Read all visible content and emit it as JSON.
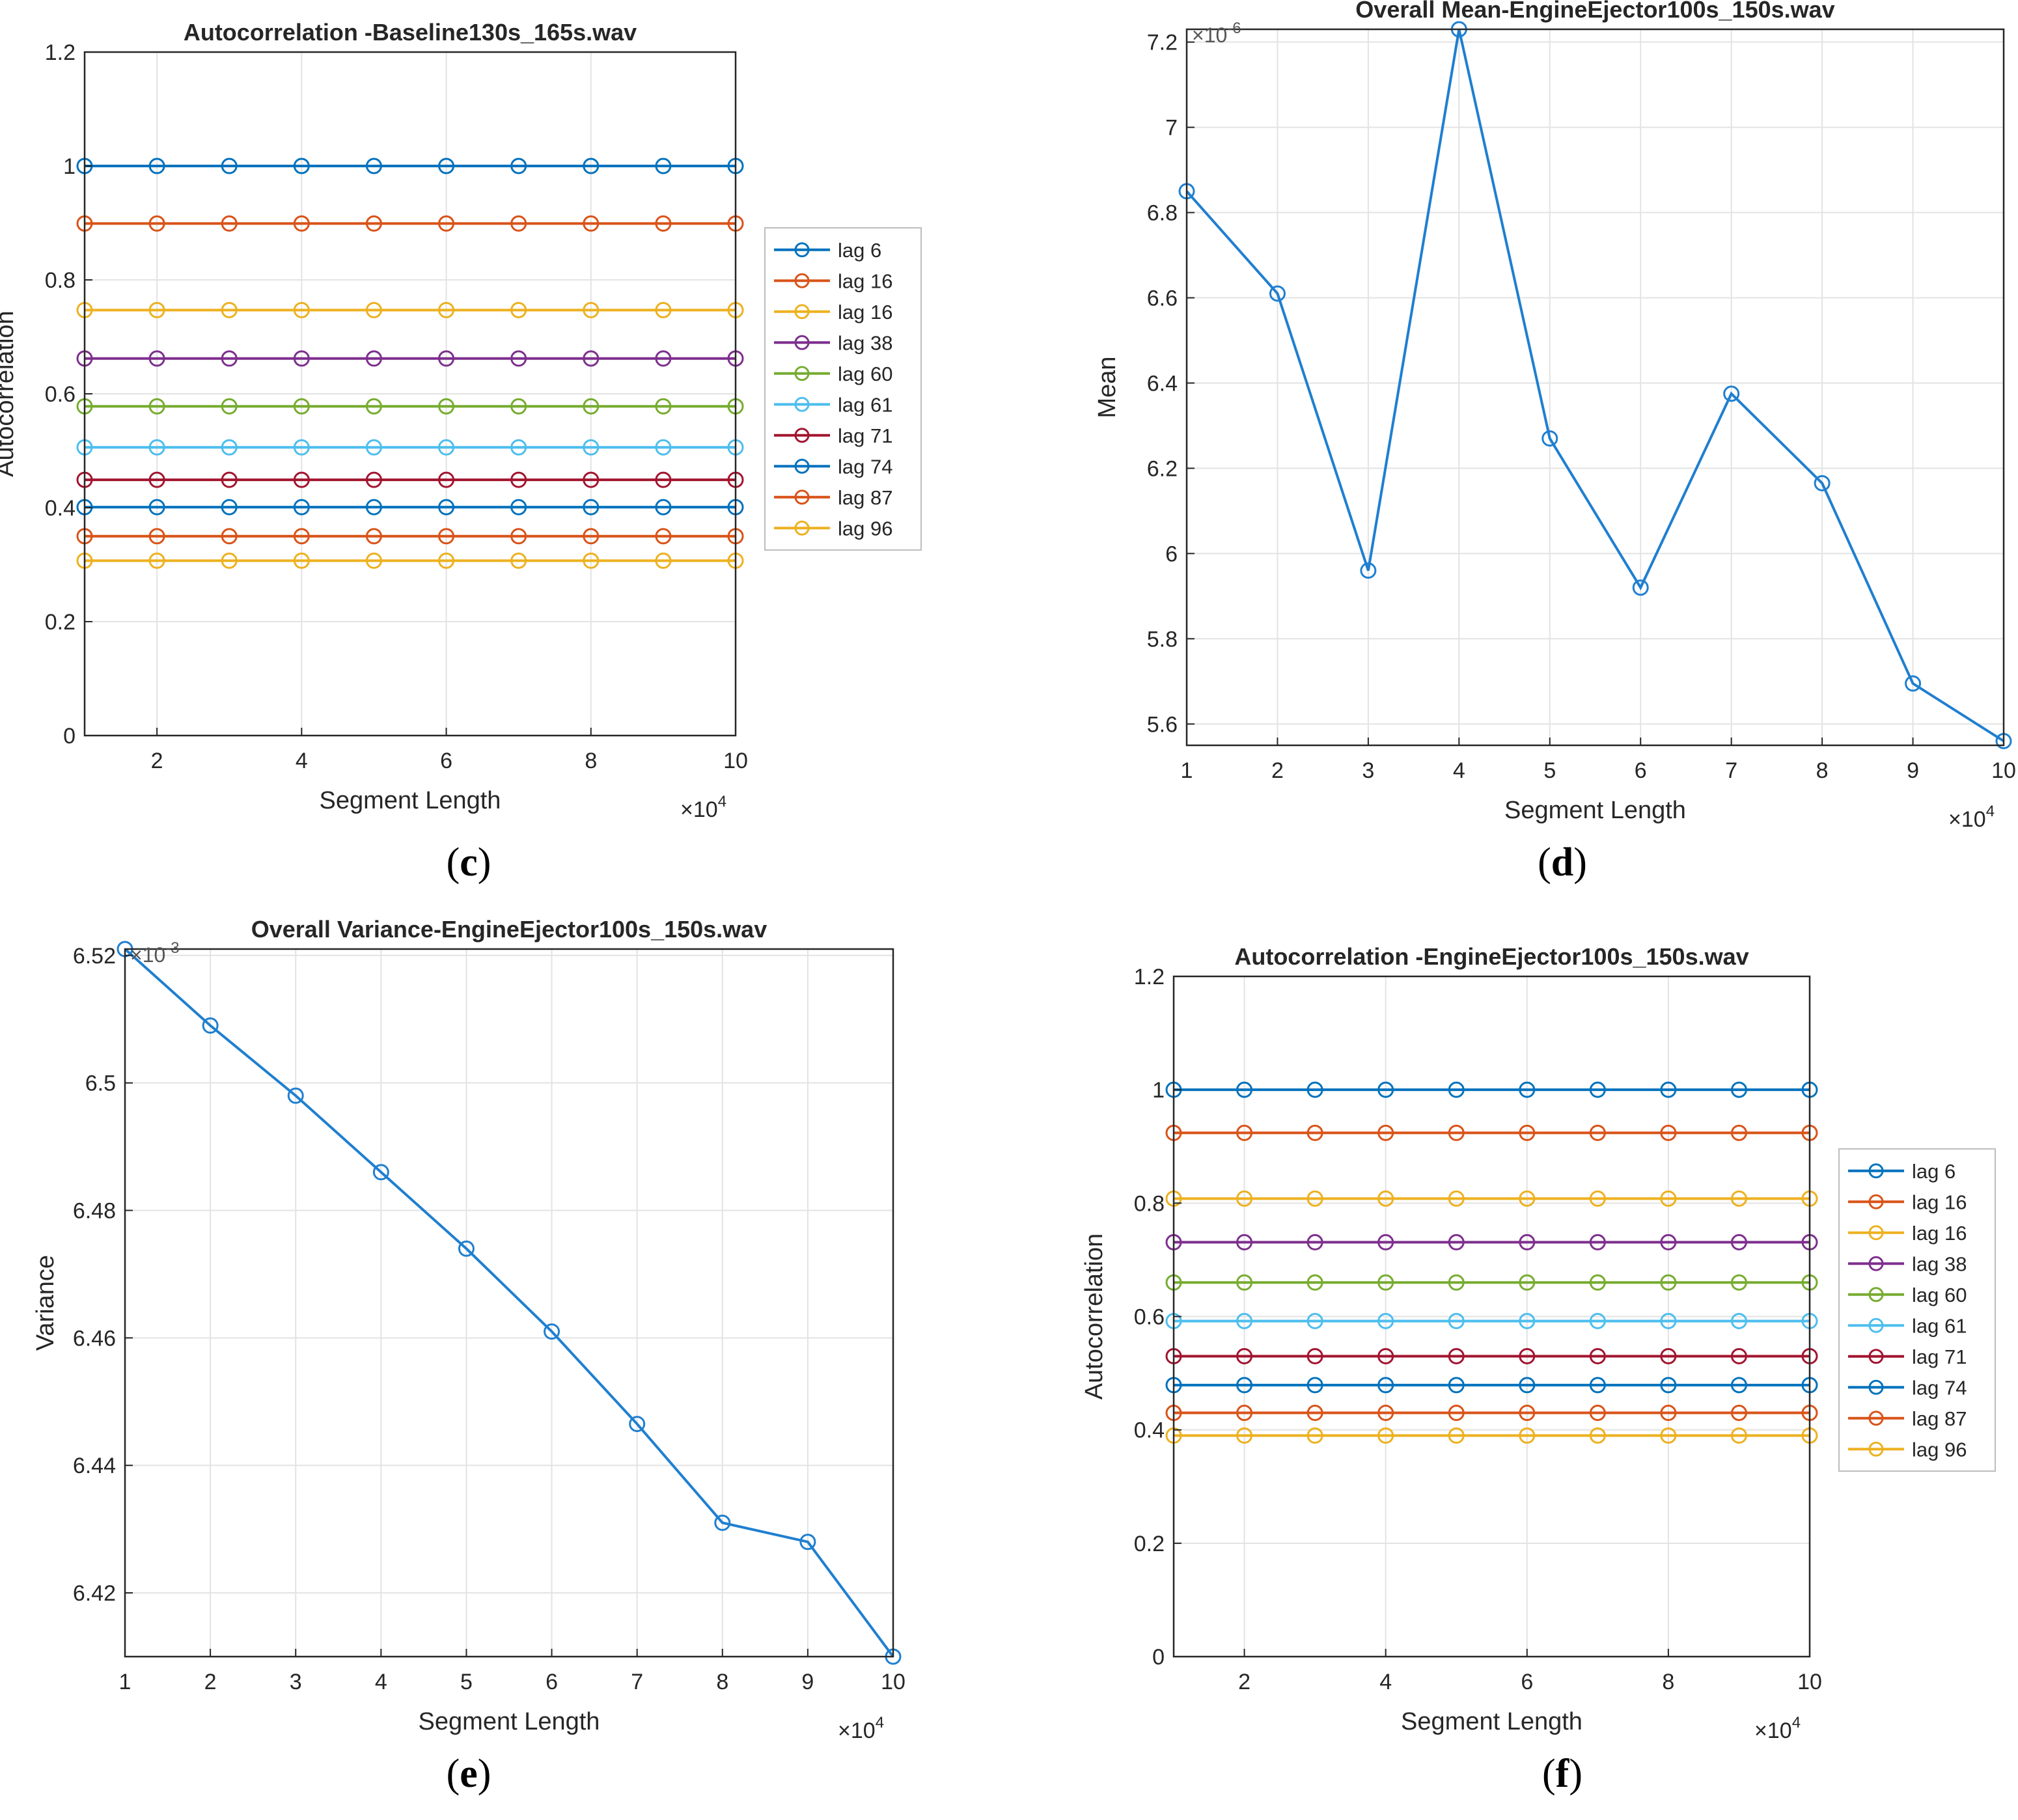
{
  "colors": {
    "c1": "#0072BD",
    "c2": "#D95319",
    "c3": "#EDB120",
    "c4": "#7E2F8E",
    "c5": "#77AC30",
    "c6": "#4DBEEE",
    "c7": "#A2142F",
    "c8": "#0072BD",
    "c9": "#D95319",
    "c10": "#EDB120",
    "mean_line": "#1f7fd0",
    "grid": "#e3e3e3",
    "axis": "#262626",
    "text": "#262626"
  },
  "captions": {
    "c": {
      "open": "(",
      "letter": "c",
      "close": ")"
    },
    "d": {
      "open": "(",
      "letter": "d",
      "close": ")"
    },
    "e": {
      "open": "(",
      "letter": "e",
      "close": ")"
    },
    "f": {
      "open": "(",
      "letter": "f",
      "close": ")"
    }
  },
  "chart_data": [
    {
      "id": "c",
      "type": "line",
      "title": "Autocorrelation -Baseline130s_165s.wav",
      "xlabel": "Segment Length",
      "ylabel": "Autocorrelation",
      "x_multiplier": "×10",
      "x_multiplier_exp": "4",
      "xlim": [
        1,
        10
      ],
      "ylim": [
        0,
        1.2
      ],
      "xticks": [
        2,
        4,
        6,
        8,
        10
      ],
      "yticks": [
        0,
        0.2,
        0.4,
        0.6,
        0.8,
        1,
        1.2
      ],
      "ytick_labels": [
        "0",
        "0.2",
        "0.4",
        "0.6",
        "0.8",
        "1",
        "1.2"
      ],
      "grid": true,
      "legend": "right-outside",
      "x": [
        1,
        2,
        3,
        4,
        5,
        6,
        7,
        8,
        9,
        10
      ],
      "series": [
        {
          "name": "lag 6",
          "color": "c1",
          "values": [
            1,
            1,
            1,
            1,
            1,
            1,
            1,
            1,
            1,
            1
          ]
        },
        {
          "name": "lag 16",
          "color": "c2",
          "values": [
            0.899,
            0.899,
            0.899,
            0.899,
            0.899,
            0.899,
            0.899,
            0.899,
            0.899,
            0.899
          ]
        },
        {
          "name": "lag 16",
          "color": "c3",
          "values": [
            0.747,
            0.747,
            0.747,
            0.747,
            0.747,
            0.747,
            0.747,
            0.747,
            0.747,
            0.747
          ]
        },
        {
          "name": "lag 38",
          "color": "c4",
          "values": [
            0.662,
            0.662,
            0.662,
            0.662,
            0.662,
            0.662,
            0.662,
            0.662,
            0.662,
            0.662
          ]
        },
        {
          "name": "lag 60",
          "color": "c5",
          "values": [
            0.578,
            0.578,
            0.578,
            0.578,
            0.578,
            0.578,
            0.578,
            0.578,
            0.578,
            0.578
          ]
        },
        {
          "name": "lag 61",
          "color": "c6",
          "values": [
            0.506,
            0.506,
            0.506,
            0.506,
            0.506,
            0.506,
            0.506,
            0.506,
            0.506,
            0.506
          ]
        },
        {
          "name": "lag 71",
          "color": "c7",
          "values": [
            0.449,
            0.449,
            0.449,
            0.449,
            0.449,
            0.449,
            0.449,
            0.449,
            0.449,
            0.449
          ]
        },
        {
          "name": "lag 74",
          "color": "c8",
          "values": [
            0.401,
            0.401,
            0.401,
            0.401,
            0.401,
            0.401,
            0.401,
            0.401,
            0.401,
            0.401
          ]
        },
        {
          "name": "lag 87",
          "color": "c9",
          "values": [
            0.35,
            0.35,
            0.35,
            0.35,
            0.35,
            0.35,
            0.35,
            0.35,
            0.35,
            0.35
          ]
        },
        {
          "name": "lag 96",
          "color": "c10",
          "values": [
            0.307,
            0.307,
            0.307,
            0.307,
            0.307,
            0.307,
            0.307,
            0.307,
            0.307,
            0.307
          ]
        }
      ]
    },
    {
      "id": "d",
      "type": "line",
      "title": "Overall Mean-EngineEjector100s_150s.wav",
      "xlabel": "Segment Length",
      "ylabel": "Mean",
      "x_multiplier": "×10",
      "x_multiplier_exp": "4",
      "y_multiplier": "×10",
      "y_multiplier_exp": "-6",
      "xlim": [
        1,
        10
      ],
      "ylim": [
        5.55,
        7.23
      ],
      "xticks": [
        1,
        2,
        3,
        4,
        5,
        6,
        7,
        8,
        9,
        10
      ],
      "yticks": [
        5.6,
        5.8,
        6,
        6.2,
        6.4,
        6.6,
        6.8,
        7,
        7.2
      ],
      "ytick_labels": [
        "5.6",
        "5.8",
        "6",
        "6.2",
        "6.4",
        "6.6",
        "6.8",
        "7",
        "7.2"
      ],
      "grid": true,
      "x": [
        1,
        2,
        3,
        4,
        5,
        6,
        7,
        8,
        9,
        10
      ],
      "series": [
        {
          "name": "mean",
          "color": "mean_line",
          "values": [
            6.85,
            6.61,
            5.96,
            7.23,
            6.27,
            5.92,
            6.375,
            6.165,
            5.695,
            5.56
          ]
        }
      ]
    },
    {
      "id": "e",
      "type": "line",
      "title": "Overall Variance-EngineEjector100s_150s.wav",
      "xlabel": "Segment Length",
      "ylabel": "Variance",
      "x_multiplier": "×10",
      "x_multiplier_exp": "4",
      "y_multiplier": "×10",
      "y_multiplier_exp": "-3",
      "xlim": [
        1,
        10
      ],
      "ylim": [
        6.41,
        6.521
      ],
      "xticks": [
        1,
        2,
        3,
        4,
        5,
        6,
        7,
        8,
        9,
        10
      ],
      "yticks": [
        6.42,
        6.44,
        6.46,
        6.48,
        6.5,
        6.52
      ],
      "ytick_labels": [
        "6.42",
        "6.44",
        "6.46",
        "6.48",
        "6.5",
        "6.52"
      ],
      "grid": true,
      "x": [
        1,
        2,
        3,
        4,
        5,
        6,
        7,
        8,
        9,
        10
      ],
      "series": [
        {
          "name": "variance",
          "color": "mean_line",
          "values": [
            6.521,
            6.509,
            6.498,
            6.486,
            6.474,
            6.461,
            6.4465,
            6.431,
            6.428,
            6.41
          ]
        }
      ]
    },
    {
      "id": "f",
      "type": "line",
      "title": "Autocorrelation -EngineEjector100s_150s.wav",
      "xlabel": "Segment Length",
      "ylabel": "Autocorrelation",
      "x_multiplier": "×10",
      "x_multiplier_exp": "4",
      "xlim": [
        1,
        10
      ],
      "ylim": [
        0,
        1.2
      ],
      "xticks": [
        2,
        4,
        6,
        8,
        10
      ],
      "yticks": [
        0,
        0.2,
        0.4,
        0.6,
        0.8,
        1,
        1.2
      ],
      "ytick_labels": [
        "0",
        "0.2",
        "0.4",
        "0.6",
        "0.8",
        "1",
        "1.2"
      ],
      "grid": true,
      "legend": "right-outside",
      "x": [
        1,
        2,
        3,
        4,
        5,
        6,
        7,
        8,
        9,
        10
      ],
      "series": [
        {
          "name": "lag 6",
          "color": "c1",
          "values": [
            1,
            1,
            1,
            1,
            1,
            1,
            1,
            1,
            1,
            1
          ]
        },
        {
          "name": "lag 16",
          "color": "c2",
          "values": [
            0.924,
            0.924,
            0.924,
            0.924,
            0.924,
            0.924,
            0.924,
            0.924,
            0.924,
            0.924
          ]
        },
        {
          "name": "lag 16",
          "color": "c3",
          "values": [
            0.808,
            0.808,
            0.808,
            0.808,
            0.808,
            0.808,
            0.808,
            0.808,
            0.808,
            0.808
          ]
        },
        {
          "name": "lag 38",
          "color": "c4",
          "values": [
            0.731,
            0.731,
            0.731,
            0.731,
            0.731,
            0.731,
            0.731,
            0.731,
            0.731,
            0.731
          ]
        },
        {
          "name": "lag 60",
          "color": "c5",
          "values": [
            0.66,
            0.66,
            0.66,
            0.66,
            0.66,
            0.66,
            0.66,
            0.66,
            0.66,
            0.66
          ]
        },
        {
          "name": "lag 61",
          "color": "c6",
          "values": [
            0.592,
            0.592,
            0.592,
            0.592,
            0.592,
            0.592,
            0.592,
            0.592,
            0.592,
            0.592
          ]
        },
        {
          "name": "lag 71",
          "color": "c7",
          "values": [
            0.53,
            0.53,
            0.53,
            0.53,
            0.53,
            0.53,
            0.53,
            0.53,
            0.53,
            0.53
          ]
        },
        {
          "name": "lag 74",
          "color": "c8",
          "values": [
            0.479,
            0.479,
            0.479,
            0.479,
            0.479,
            0.479,
            0.479,
            0.479,
            0.479,
            0.479
          ]
        },
        {
          "name": "lag 87",
          "color": "c9",
          "values": [
            0.43,
            0.43,
            0.43,
            0.43,
            0.43,
            0.43,
            0.43,
            0.43,
            0.43,
            0.43
          ]
        },
        {
          "name": "lag 96",
          "color": "c10",
          "values": [
            0.39,
            0.39,
            0.39,
            0.39,
            0.39,
            0.39,
            0.39,
            0.39,
            0.39,
            0.39
          ]
        }
      ]
    }
  ]
}
